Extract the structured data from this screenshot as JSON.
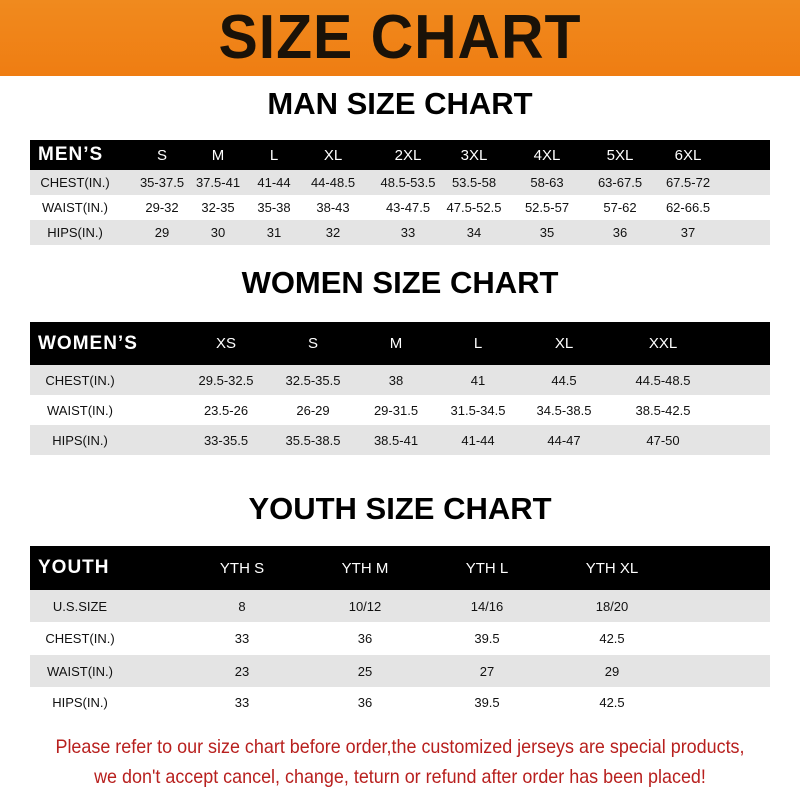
{
  "banner_title": "SIZE CHART",
  "men": {
    "title": "MAN SIZE CHART",
    "header_label": "MEN’S",
    "sizes": [
      "S",
      "M",
      "L",
      "XL",
      "2XL",
      "3XL",
      "4XL",
      "5XL",
      "6XL"
    ],
    "rows": [
      {
        "label": "CHEST(IN.)",
        "values": [
          "35-37.5",
          "37.5-41",
          "41-44",
          "44-48.5",
          "48.5-53.5",
          "53.5-58",
          "58-63",
          "63-67.5",
          "67.5-72"
        ]
      },
      {
        "label": "WAIST(IN.)",
        "values": [
          "29-32",
          "32-35",
          "35-38",
          "38-43",
          "43-47.5",
          "47.5-52.5",
          "52.5-57",
          "57-62",
          "62-66.5"
        ]
      },
      {
        "label": "HIPS(IN.)",
        "values": [
          "29",
          "30",
          "31",
          "32",
          "33",
          "34",
          "35",
          "36",
          "37"
        ]
      }
    ]
  },
  "women": {
    "title": "WOMEN SIZE CHART",
    "header_label": "WOMEN’S",
    "sizes": [
      "XS",
      "S",
      "M",
      "L",
      "XL",
      "XXL"
    ],
    "rows": [
      {
        "label": "CHEST(IN.)",
        "values": [
          "29.5-32.5",
          "32.5-35.5",
          "38",
          "41",
          "44.5",
          "44.5-48.5"
        ]
      },
      {
        "label": "WAIST(IN.)",
        "values": [
          "23.5-26",
          "26-29",
          "29-31.5",
          "31.5-34.5",
          "34.5-38.5",
          "38.5-42.5"
        ]
      },
      {
        "label": "HIPS(IN.)",
        "values": [
          "33-35.5",
          "35.5-38.5",
          "38.5-41",
          "41-44",
          "44-47",
          "47-50"
        ]
      }
    ]
  },
  "youth": {
    "title": "YOUTH SIZE CHART",
    "header_label": "YOUTH",
    "sizes": [
      "YTH S",
      "YTH M",
      "YTH L",
      "YTH XL"
    ],
    "rows": [
      {
        "label": "U.S.SIZE",
        "values": [
          "8",
          "10/12",
          "14/16",
          "18/20"
        ]
      },
      {
        "label": "CHEST(IN.)",
        "values": [
          "33",
          "36",
          "39.5",
          "42.5"
        ]
      },
      {
        "label": "WAIST(IN.)",
        "values": [
          "23",
          "25",
          "27",
          "29"
        ]
      },
      {
        "label": "HIPS(IN.)",
        "values": [
          "33",
          "36",
          "39.5",
          "42.5"
        ]
      }
    ]
  },
  "notice": {
    "line1": "Please refer to our size chart before order,the customized jerseys are special products,",
    "line2": "we don't accept cancel, change, teturn or refund after order has been placed!"
  },
  "colors": {
    "banner": "#ef8318",
    "header_row": "#000000",
    "stripe": "#e4e4e4",
    "notice": "#b8201e"
  }
}
